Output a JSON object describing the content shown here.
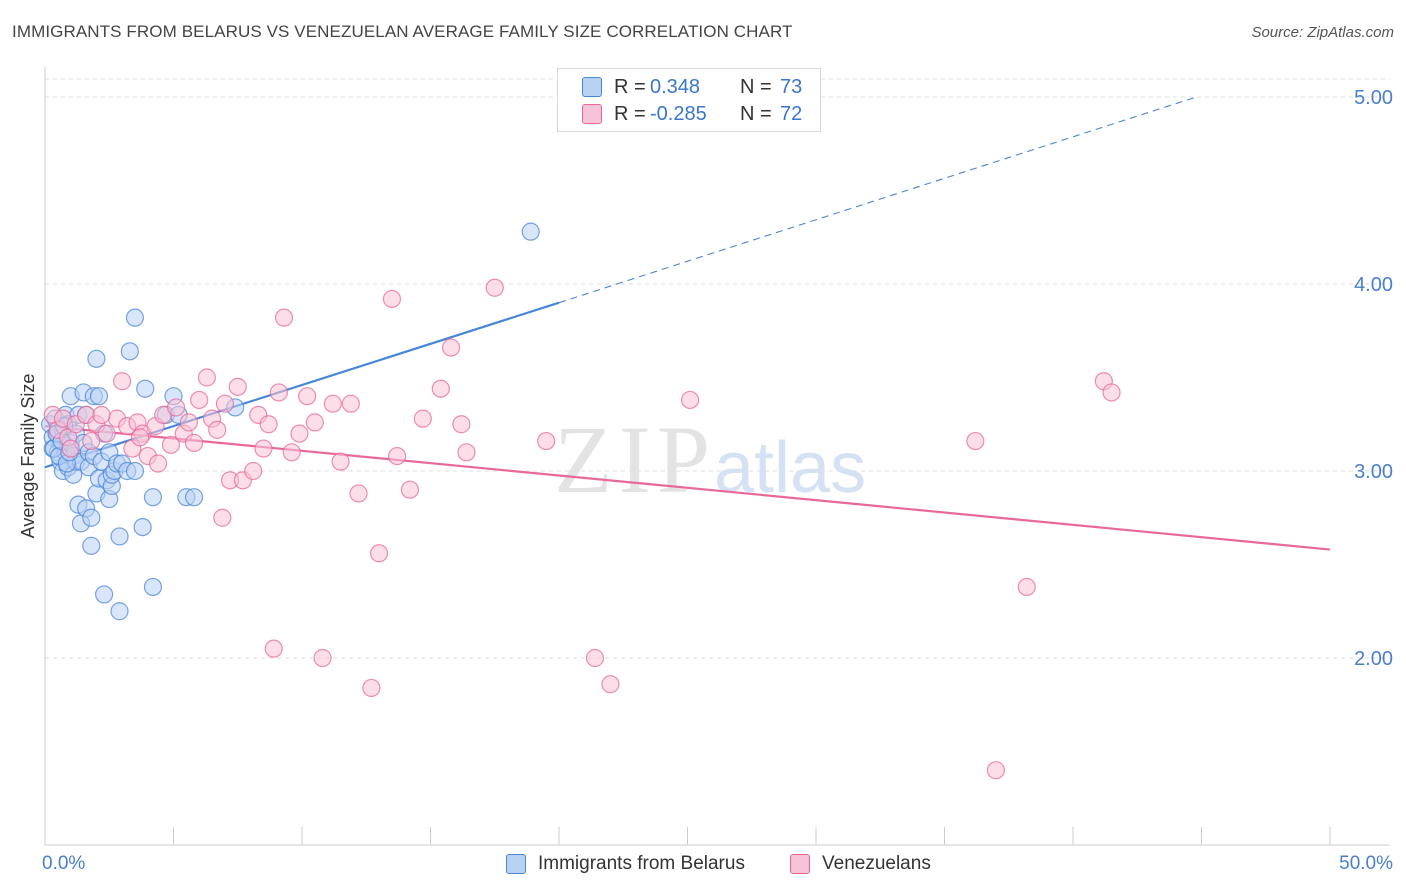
{
  "title": "IMMIGRANTS FROM BELARUS VS VENEZUELAN AVERAGE FAMILY SIZE CORRELATION CHART",
  "source": "Source: ZipAtlas.com",
  "watermark": {
    "zip": "ZIP",
    "atlas": "atlas"
  },
  "colors": {
    "blue": "#4a86d8",
    "blue_fill": "#b9d2f4",
    "pink": "#e8689a",
    "pink_fill": "#f7c3d6",
    "tick": "#4a7fcf",
    "grid": "#dddddd"
  },
  "legend": {
    "r_label": "R =",
    "n_label": "N =",
    "rows": [
      {
        "series": "Immigrants from Belarus",
        "r": "0.348",
        "n": "73",
        "color": "blue"
      },
      {
        "series": "Venezuelans",
        "r": "-0.285",
        "n": "72",
        "color": "pink"
      }
    ]
  },
  "chart_data": {
    "type": "scatter",
    "title": "IMMIGRANTS FROM BELARUS VS VENEZUELAN AVERAGE FAMILY SIZE CORRELATION CHART",
    "xlabel": "",
    "ylabel": "Average Family Size",
    "xlim": [
      0,
      50
    ],
    "ylim": [
      1.0,
      5.15
    ],
    "x_tick_labels": [
      "0.0%",
      "50.0%"
    ],
    "y_ticks": [
      2.0,
      3.0,
      4.0,
      5.0
    ],
    "y_tick_labels": [
      "2.00",
      "3.00",
      "4.00",
      "5.00"
    ],
    "series": [
      {
        "name": "Immigrants from Belarus",
        "color": "blue",
        "points": [
          [
            0.2,
            3.25
          ],
          [
            0.3,
            3.18
          ],
          [
            0.3,
            3.12
          ],
          [
            0.4,
            3.28
          ],
          [
            0.5,
            3.1
          ],
          [
            0.5,
            3.2
          ],
          [
            0.6,
            3.15
          ],
          [
            0.6,
            3.05
          ],
          [
            0.7,
            3.22
          ],
          [
            0.7,
            3.0
          ],
          [
            0.8,
            3.3
          ],
          [
            0.8,
            3.1
          ],
          [
            0.9,
            3.02
          ],
          [
            0.9,
            3.25
          ],
          [
            1.0,
            3.4
          ],
          [
            1.0,
            3.15
          ],
          [
            1.1,
            3.08
          ],
          [
            1.1,
            2.98
          ],
          [
            1.2,
            3.2
          ],
          [
            1.2,
            3.05
          ],
          [
            1.3,
            3.3
          ],
          [
            1.3,
            2.82
          ],
          [
            1.4,
            3.05
          ],
          [
            1.4,
            2.72
          ],
          [
            1.5,
            3.42
          ],
          [
            1.5,
            3.15
          ],
          [
            1.6,
            3.3
          ],
          [
            1.6,
            2.8
          ],
          [
            1.7,
            3.1
          ],
          [
            1.7,
            3.02
          ],
          [
            1.8,
            2.75
          ],
          [
            1.8,
            2.6
          ],
          [
            1.9,
            3.4
          ],
          [
            1.9,
            3.08
          ],
          [
            2.0,
            3.6
          ],
          [
            2.0,
            2.88
          ],
          [
            2.1,
            3.4
          ],
          [
            2.1,
            2.96
          ],
          [
            2.2,
            3.05
          ],
          [
            2.3,
            2.34
          ],
          [
            2.3,
            3.2
          ],
          [
            2.4,
            2.95
          ],
          [
            2.5,
            3.1
          ],
          [
            2.5,
            2.85
          ],
          [
            2.6,
            2.92
          ],
          [
            2.6,
            2.98
          ],
          [
            2.7,
            3.0
          ],
          [
            2.8,
            3.04
          ],
          [
            2.9,
            2.65
          ],
          [
            2.9,
            2.25
          ],
          [
            3.0,
            3.04
          ],
          [
            3.2,
            3.0
          ],
          [
            3.3,
            3.64
          ],
          [
            3.5,
            3.82
          ],
          [
            3.5,
            3.0
          ],
          [
            3.8,
            2.7
          ],
          [
            3.9,
            3.44
          ],
          [
            4.2,
            2.86
          ],
          [
            4.2,
            2.38
          ],
          [
            4.7,
            3.3
          ],
          [
            5.0,
            3.4
          ],
          [
            5.2,
            3.3
          ],
          [
            5.5,
            2.86
          ],
          [
            5.8,
            2.86
          ],
          [
            7.4,
            3.34
          ],
          [
            18.9,
            4.28
          ],
          [
            0.35,
            3.12
          ],
          [
            0.45,
            3.2
          ],
          [
            0.55,
            3.08
          ],
          [
            0.65,
            3.16
          ],
          [
            0.75,
            3.24
          ],
          [
            0.85,
            3.04
          ],
          [
            0.95,
            3.1
          ]
        ]
      },
      {
        "name": "Venezuelans",
        "color": "pink",
        "points": [
          [
            0.3,
            3.3
          ],
          [
            0.5,
            3.22
          ],
          [
            0.7,
            3.28
          ],
          [
            0.9,
            3.18
          ],
          [
            1.2,
            3.25
          ],
          [
            1.6,
            3.3
          ],
          [
            2.0,
            3.25
          ],
          [
            2.4,
            3.2
          ],
          [
            2.8,
            3.28
          ],
          [
            3.0,
            3.48
          ],
          [
            3.2,
            3.24
          ],
          [
            3.4,
            3.12
          ],
          [
            3.6,
            3.26
          ],
          [
            3.8,
            3.2
          ],
          [
            4.0,
            3.08
          ],
          [
            4.3,
            3.24
          ],
          [
            4.6,
            3.3
          ],
          [
            4.9,
            3.14
          ],
          [
            5.1,
            3.34
          ],
          [
            5.4,
            3.2
          ],
          [
            5.8,
            3.15
          ],
          [
            6.0,
            3.38
          ],
          [
            6.3,
            3.5
          ],
          [
            6.5,
            3.28
          ],
          [
            6.9,
            2.75
          ],
          [
            7.2,
            2.95
          ],
          [
            7.5,
            3.45
          ],
          [
            7.7,
            2.95
          ],
          [
            8.1,
            3.0
          ],
          [
            8.3,
            3.3
          ],
          [
            8.7,
            3.25
          ],
          [
            8.9,
            2.05
          ],
          [
            9.1,
            3.42
          ],
          [
            9.3,
            3.82
          ],
          [
            9.6,
            3.1
          ],
          [
            10.2,
            3.4
          ],
          [
            10.5,
            3.26
          ],
          [
            10.8,
            2.0
          ],
          [
            11.2,
            3.36
          ],
          [
            11.5,
            3.05
          ],
          [
            11.9,
            3.36
          ],
          [
            12.7,
            1.84
          ],
          [
            13.0,
            2.56
          ],
          [
            13.5,
            3.92
          ],
          [
            13.7,
            3.08
          ],
          [
            14.2,
            2.9
          ],
          [
            15.4,
            3.44
          ],
          [
            15.8,
            3.66
          ],
          [
            16.2,
            3.25
          ],
          [
            16.4,
            3.1
          ],
          [
            17.5,
            3.98
          ],
          [
            19.5,
            3.16
          ],
          [
            21.4,
            2.0
          ],
          [
            22.0,
            1.86
          ],
          [
            25.1,
            3.38
          ],
          [
            36.2,
            3.16
          ],
          [
            37.0,
            1.4
          ],
          [
            38.2,
            2.38
          ],
          [
            41.2,
            3.48
          ],
          [
            41.5,
            3.42
          ],
          [
            6.7,
            3.22
          ],
          [
            9.9,
            3.2
          ],
          [
            1.0,
            3.12
          ],
          [
            2.2,
            3.3
          ],
          [
            3.7,
            3.18
          ],
          [
            4.4,
            3.04
          ],
          [
            5.6,
            3.26
          ],
          [
            7.0,
            3.36
          ],
          [
            8.5,
            3.12
          ],
          [
            12.2,
            2.88
          ],
          [
            14.7,
            3.28
          ],
          [
            1.8,
            3.16
          ]
        ]
      }
    ],
    "trend_lines": [
      {
        "series": "Immigrants from Belarus",
        "solid": [
          [
            0.0,
            3.02
          ],
          [
            20.0,
            3.9
          ]
        ],
        "dashed": [
          [
            20.0,
            3.9
          ],
          [
            44.8,
            5.0
          ]
        ]
      },
      {
        "series": "Venezuelans",
        "solid": [
          [
            0.0,
            3.24
          ],
          [
            50.0,
            2.58
          ]
        ]
      }
    ]
  }
}
